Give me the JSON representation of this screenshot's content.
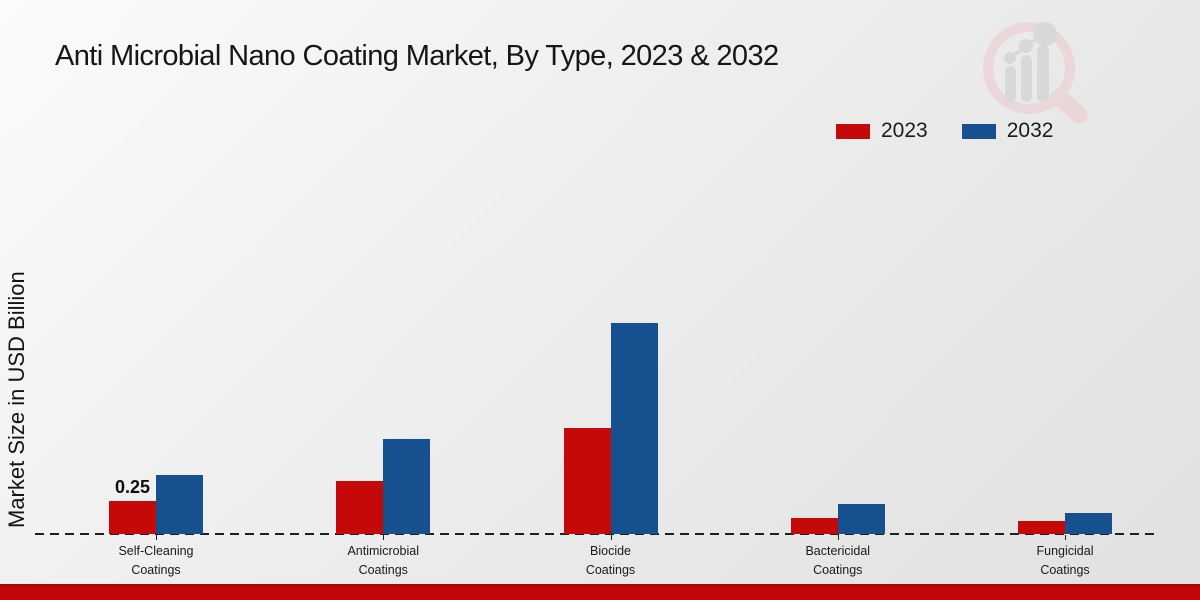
{
  "page": {
    "title": "Anti Microbial Nano Coating Market, By Type, 2023 & 2032"
  },
  "chart_data": {
    "type": "bar",
    "title": "Anti Microbial Nano Coating Market, By Type, 2023 & 2032",
    "ylabel": "Market Size in USD Billion",
    "xlabel": "",
    "categories": [
      "Self-Cleaning Coatings",
      "Antimicrobial Coatings",
      "Biocide Coatings",
      "Bactericidal Coatings",
      "Fungicidal Coatings"
    ],
    "series": [
      {
        "name": "2023",
        "color": "#c50808",
        "values": [
          0.25,
          0.4,
          0.8,
          0.12,
          0.1
        ]
      },
      {
        "name": "2032",
        "color": "#17508f",
        "values": [
          0.45,
          0.72,
          1.6,
          0.23,
          0.16
        ]
      }
    ],
    "data_labels": [
      {
        "series": "2023",
        "category_index": 0,
        "text": "0.25"
      }
    ],
    "ylim": [
      0,
      1.7
    ],
    "grid": false,
    "y_axis_ticks_visible": false,
    "legend_position": "top-right",
    "baseline_style": "dashed"
  },
  "legend": {
    "items": [
      {
        "label": "2023",
        "color": "#c50808"
      },
      {
        "label": "2032",
        "color": "#17508f"
      }
    ]
  },
  "colors": {
    "axis": "#1f1f1f",
    "footer_strip": "#c00707",
    "background": "#ececec",
    "watermark_pink": "#ecc6ca",
    "watermark_gray": "#c7c7cb"
  },
  "watermark": {
    "name": "market-research-future-logo"
  }
}
